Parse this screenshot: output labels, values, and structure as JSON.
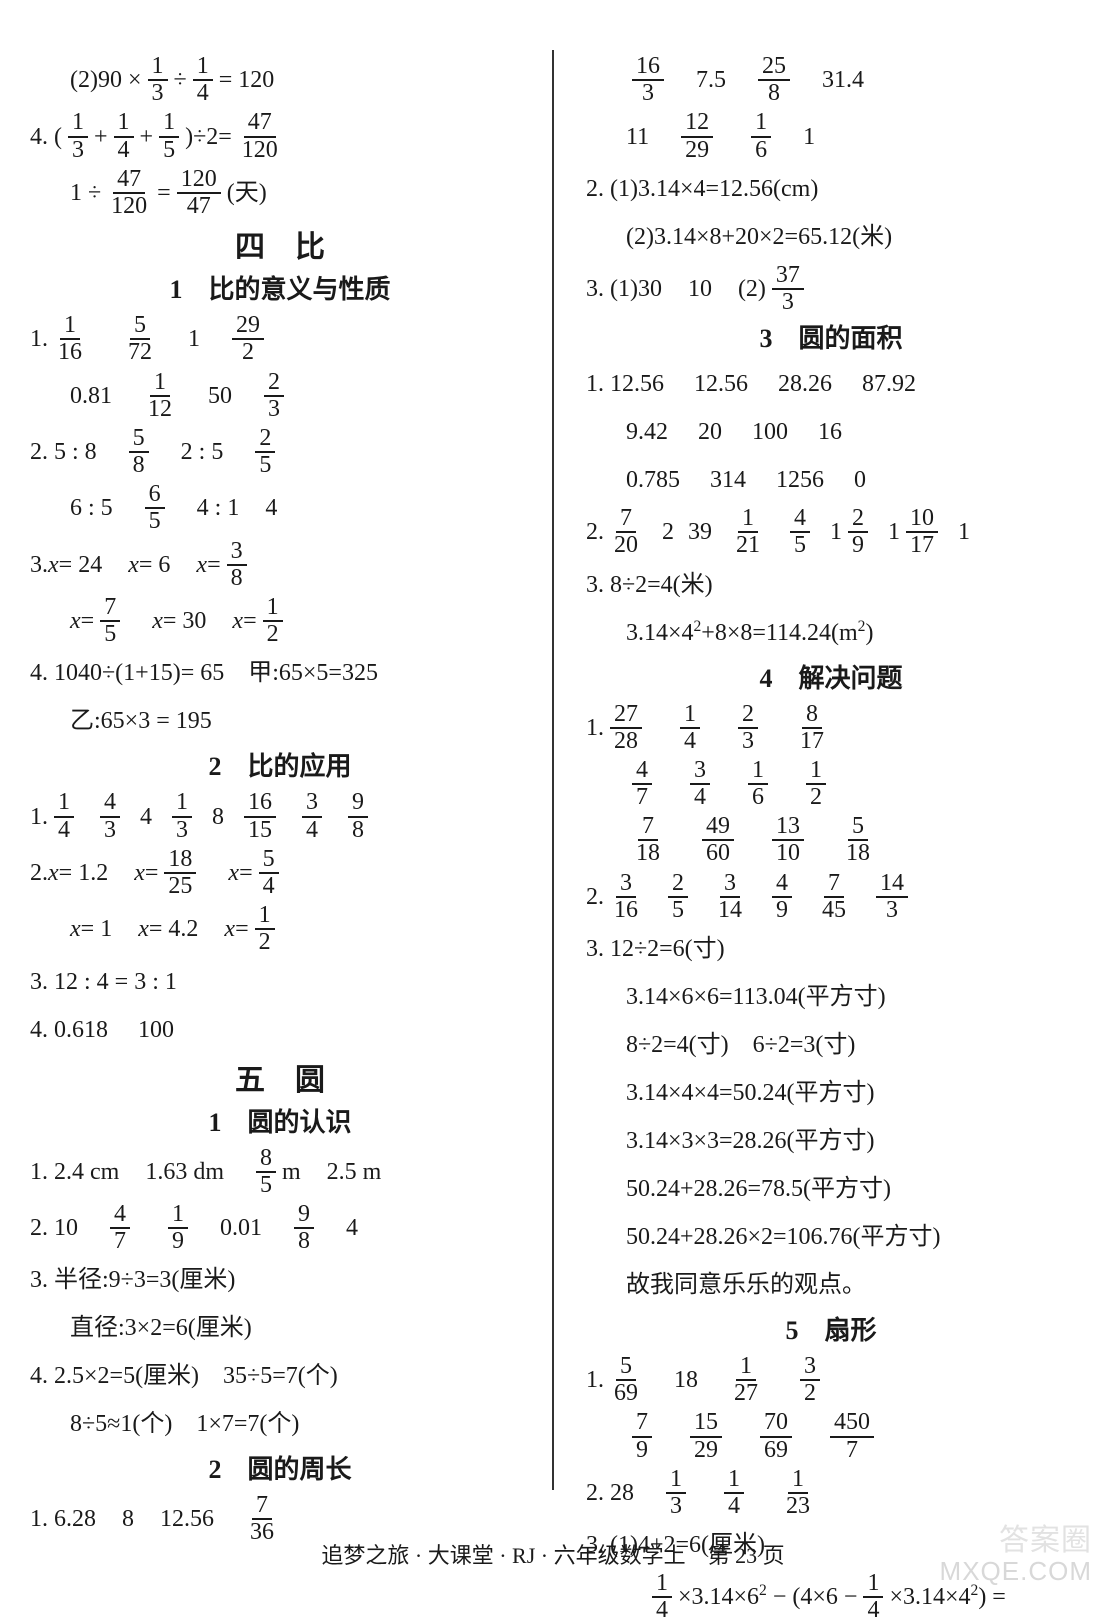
{
  "footer": "追梦之旅 · 大课堂 · RJ · 六年级数学上　第 23 页",
  "watermark_cn": "答案圈",
  "watermark_en": "MXQE.COM",
  "left": {
    "l1a": "(2)90 × ",
    "f1n": "1",
    "f1d": "3",
    "l1b": " ÷ ",
    "f2n": "1",
    "f2d": "4",
    "l1c": " = 120",
    "l2a": "4. (",
    "f3n": "1",
    "f3d": "3",
    "l2b": " + ",
    "f4n": "1",
    "f4d": "4",
    "l2c": " + ",
    "f5n": "1",
    "f5d": "5",
    "l2d": ")÷2= ",
    "f6n": "47",
    "f6d": "120",
    "l3a": "1 ÷ ",
    "f7n": "47",
    "f7d": "120",
    "l3b": " = ",
    "f8n": "120",
    "f8d": "47",
    "l3c": "(天)",
    "h1": "四　比",
    "sh1": "1　比的意义与性质",
    "l4a": "1.",
    "f9n": "1",
    "f9d": "16",
    "f10n": "5",
    "f10d": "72",
    "l4b": "1",
    "f11n": "29",
    "f11d": "2",
    "l5a": "0.81",
    "f12n": "1",
    "f12d": "12",
    "l5b": "50",
    "f13n": "2",
    "f13d": "3",
    "l6a": "2. 5 : 8",
    "f14n": "5",
    "f14d": "8",
    "l6b": "2 : 5",
    "f15n": "2",
    "f15d": "5",
    "l7a": "6 : 5",
    "f16n": "6",
    "f16d": "5",
    "l7b": "4 : 1",
    "l7c": "4",
    "l8a": "3. ",
    "l8x1": "x",
    "l8b": " = 24",
    "l8x2": "x",
    "l8c": " = 6",
    "l8x3": "x",
    "l8d": " = ",
    "f17n": "3",
    "f17d": "8",
    "l9x1": "x",
    "l9a": " = ",
    "f18n": "7",
    "f18d": "5",
    "l9x2": "x",
    "l9b": " = 30",
    "l9x3": "x",
    "l9c": " = ",
    "f19n": "1",
    "f19d": "2",
    "l10": "4. 1040÷(1+15)= 65　甲:65×5=325",
    "l11": "乙:65×3 = 195",
    "sh2": "2　比的应用",
    "l12a": "1.",
    "f20n": "1",
    "f20d": "4",
    "f21n": "4",
    "f21d": "3",
    "l12b": "4",
    "f22n": "1",
    "f22d": "3",
    "l12c": "8",
    "f23n": "16",
    "f23d": "15",
    "f24n": "3",
    "f24d": "4",
    "f25n": "9",
    "f25d": "8",
    "l13a": "2. ",
    "l13x1": "x",
    "l13b": " = 1.2",
    "l13x2": "x",
    "l13c": " = ",
    "f26n": "18",
    "f26d": "25",
    "l13x3": "x",
    "l13d": " = ",
    "f27n": "5",
    "f27d": "4",
    "l14x1": "x",
    "l14a": " = 1",
    "l14x2": "x",
    "l14b": " = 4.2",
    "l14x3": "x",
    "l14c": " = ",
    "f28n": "1",
    "f28d": "2",
    "l15": "3. 12 : 4 = 3 : 1",
    "l16": "4. 0.618　 100",
    "h2": "五　圆",
    "sh3": "1　圆的认识",
    "l17a": "1. 2.4 cm",
    "l17b": "1.63 dm",
    "f29n": "8",
    "f29d": "5",
    "l17c": "m",
    "l17d": "2.5 m",
    "l18a": "2. 10",
    "f30n": "4",
    "f30d": "7",
    "f31n": "1",
    "f31d": "9",
    "l18b": "0.01",
    "f32n": "9",
    "f32d": "8",
    "l18c": "4",
    "l19": "3. 半径:9÷3=3(厘米)",
    "l20": "直径:3×2=6(厘米)",
    "l21": "4. 2.5×2=5(厘米)　35÷5=7(个)",
    "l22": "8÷5≈1(个)　1×7=7(个)",
    "sh4": "2　圆的周长",
    "l23a": "1. 6.28",
    "l23b": "8",
    "l23c": "12.56",
    "f33n": "7",
    "f33d": "36"
  },
  "right": {
    "f40n": "16",
    "f40d": "3",
    "r1a": "7.5",
    "f41n": "25",
    "f41d": "8",
    "r1b": "31.4",
    "r2a": "11",
    "f42n": "12",
    "f42d": "29",
    "f43n": "1",
    "f43d": "6",
    "r2b": "1",
    "r3": "2. (1)3.14×4=12.56(cm)",
    "r4": "(2)3.14×8+20×2=65.12(米)",
    "r5a": "3. (1)30",
    "r5b": "10",
    "r5c": "(2)",
    "f44n": "37",
    "f44d": "3",
    "sh5": "3　圆的面积",
    "r6": "1. 12.56　 12.56　 28.26　 87.92",
    "r7": "9.42　 20　 100　 16",
    "r8": "0.785　 314　 1256　 0",
    "r9a": "2.",
    "f45n": "7",
    "f45d": "20",
    "r9b": "2",
    "r9c": "39",
    "f46n": "1",
    "f46d": "21",
    "f47n": "4",
    "f47d": "5",
    "r9d": "1",
    "f48n": "2",
    "f48d": "9",
    "r9e": "1",
    "f49n": "10",
    "f49d": "17",
    "r9f": "1",
    "r10": "3. 8÷2=4(米)",
    "r11": "3.14×4²+8×8=114.24(m²)",
    "sh6": "4　解决问题",
    "r12a": "1.",
    "f50n": "27",
    "f50d": "28",
    "f51n": "1",
    "f51d": "4",
    "f52n": "2",
    "f52d": "3",
    "f53n": "8",
    "f53d": "17",
    "f54n": "4",
    "f54d": "7",
    "f55n": "3",
    "f55d": "4",
    "f56n": "1",
    "f56d": "6",
    "f57n": "1",
    "f57d": "2",
    "f58n": "7",
    "f58d": "18",
    "f59n": "49",
    "f59d": "60",
    "f60n": "13",
    "f60d": "10",
    "f61n": "5",
    "f61d": "18",
    "r13a": "2.",
    "f62n": "3",
    "f62d": "16",
    "f63n": "2",
    "f63d": "5",
    "f64n": "3",
    "f64d": "14",
    "f65n": "4",
    "f65d": "9",
    "f66n": "7",
    "f66d": "45",
    "f67n": "14",
    "f67d": "3",
    "r14": "3. 12÷2=6(寸)",
    "r15": "3.14×6×6=113.04(平方寸)",
    "r16": "8÷2=4(寸)　6÷2=3(寸)",
    "r17": "3.14×4×4=50.24(平方寸)",
    "r18": "3.14×3×3=28.26(平方寸)",
    "r19": "50.24+28.26=78.5(平方寸)",
    "r20": "50.24+28.26×2=106.76(平方寸)",
    "r21": "故我同意乐乐的观点。",
    "sh7": "5　扇形",
    "r22a": "1.",
    "f68n": "5",
    "f68d": "69",
    "r22b": "18",
    "f69n": "1",
    "f69d": "27",
    "f70n": "3",
    "f70d": "2",
    "f71n": "7",
    "f71d": "9",
    "f72n": "15",
    "f72d": "29",
    "f73n": "70",
    "f73d": "69",
    "f74n": "450",
    "f74d": "7",
    "r23a": "2. 28",
    "f75n": "1",
    "f75d": "3",
    "f76n": "1",
    "f76d": "4",
    "f77n": "1",
    "f77d": "23",
    "r24": "3. (1)4+2=6(厘米)",
    "r25a": "",
    "f78n": "1",
    "f78d": "4",
    "r25b": "×3.14×6² − (4×6 − ",
    "f79n": "1",
    "f79d": "4",
    "r25c": "×3.14×4²) ="
  }
}
